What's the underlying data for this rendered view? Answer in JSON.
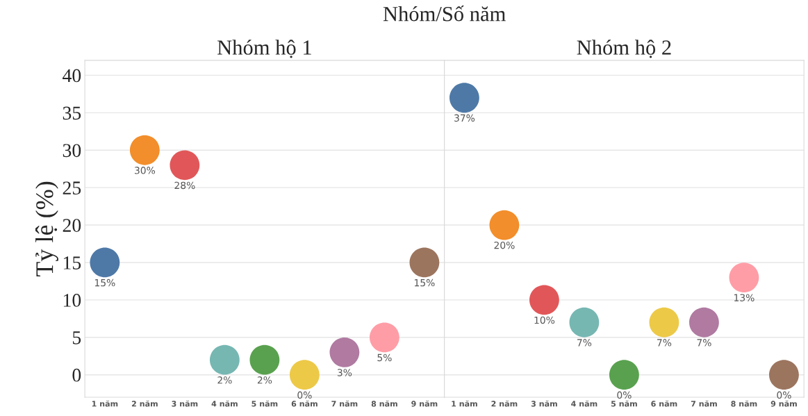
{
  "chart_data": [
    {
      "type": "scatter",
      "title": "Nhóm hộ 1",
      "ylabel": "Tỷ lệ (%)",
      "annotations": [
        "Nhóm/Số năm"
      ],
      "categories": [
        "1 năm",
        "2 năm",
        "3 năm",
        "4 năm",
        "5 năm",
        "6 năm",
        "7 năm",
        "8 năm",
        "9 năm"
      ],
      "values": [
        15,
        30,
        28,
        2,
        2,
        0,
        3,
        5,
        15
      ],
      "value_labels": [
        "15%",
        "30%",
        "28%",
        "2%",
        "2%",
        "0%",
        "3%",
        "5%",
        "15%"
      ],
      "colors": [
        "#4e79a7",
        "#f28e2b",
        "#e15759",
        "#76b7b2",
        "#59a14f",
        "#edc948",
        "#b07aa1",
        "#ff9da7",
        "#9c755f"
      ],
      "ylim": [
        -3,
        42
      ],
      "yticks": [
        0,
        5,
        10,
        15,
        20,
        25,
        30,
        35,
        40
      ],
      "grid": "y",
      "marker": "circle"
    },
    {
      "type": "scatter",
      "title": "Nhóm hộ 2",
      "categories": [
        "1 năm",
        "2 năm",
        "3 năm",
        "4 năm",
        "5 năm",
        "6 năm",
        "7 năm",
        "8 năm",
        "9 năm"
      ],
      "values": [
        37,
        20,
        10,
        7,
        0,
        7,
        7,
        13,
        0
      ],
      "value_labels": [
        "37%",
        "20%",
        "10%",
        "7%",
        "0%",
        "7%",
        "7%",
        "13%",
        "0%"
      ],
      "colors": [
        "#4e79a7",
        "#f28e2b",
        "#e15759",
        "#76b7b2",
        "#59a14f",
        "#edc948",
        "#b07aa1",
        "#ff9da7",
        "#9c755f"
      ],
      "ylim": [
        -3,
        42
      ],
      "yticks": [
        0,
        5,
        10,
        15,
        20,
        25,
        30,
        35,
        40
      ],
      "grid": "y",
      "marker": "circle",
      "tick_labels": "x"
    }
  ]
}
